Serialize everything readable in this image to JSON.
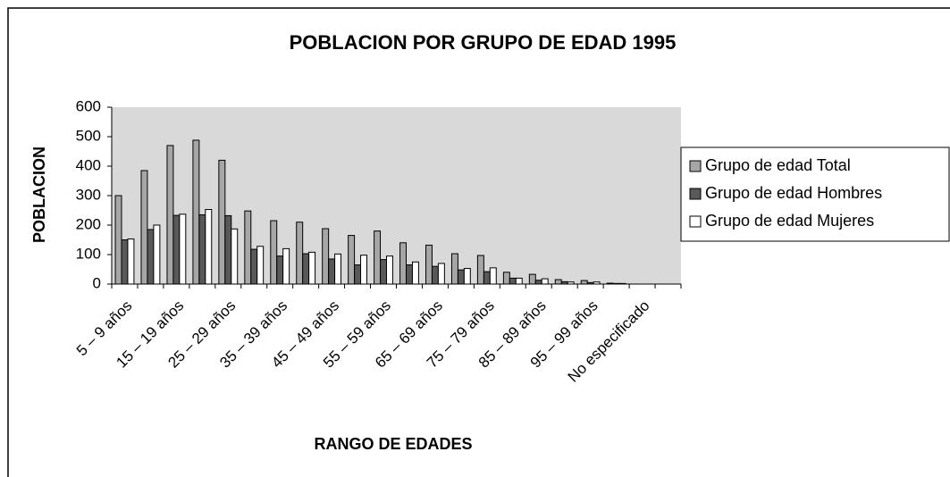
{
  "chart_data": {
    "type": "bar",
    "title": "POBLACION POR GRUPO DE EDAD 1995",
    "y_label": "POBLACION",
    "x_label": "RANGO DE EDADES",
    "categories": [
      "5 – 9 años",
      null,
      "15 – 19 años",
      null,
      "25 – 29 años",
      null,
      "35 – 39 años",
      null,
      "45 – 49 años",
      null,
      "55 – 59 años",
      null,
      "65 – 69 años",
      null,
      "75 – 79 años",
      null,
      "85 – 89 años",
      null,
      "95 – 99 años",
      null,
      "No especificado",
      null
    ],
    "series": [
      {
        "name": "Grupo de edad Total",
        "color": "#a6a6a6",
        "values": [
          300,
          385,
          470,
          488,
          420,
          248,
          215,
          210,
          188,
          165,
          180,
          140,
          132,
          103,
          97,
          40,
          33,
          15,
          12,
          3,
          0,
          0
        ]
      },
      {
        "name": "Grupo de edad Hombres",
        "color": "#595959",
        "values": [
          150,
          185,
          233,
          235,
          232,
          118,
          95,
          103,
          85,
          65,
          83,
          65,
          60,
          48,
          42,
          20,
          13,
          8,
          5,
          2,
          0,
          0
        ]
      },
      {
        "name": "Grupo de edad Mujeres",
        "color": "#ffffff",
        "values": [
          153,
          200,
          237,
          253,
          187,
          128,
          120,
          108,
          102,
          98,
          95,
          75,
          70,
          53,
          55,
          20,
          18,
          7,
          7,
          2,
          0,
          0
        ]
      }
    ],
    "ylim": [
      0,
      600
    ],
    "yticks": [
      0,
      100,
      200,
      300,
      400,
      500,
      600
    ],
    "grid": false,
    "legend": "right"
  }
}
